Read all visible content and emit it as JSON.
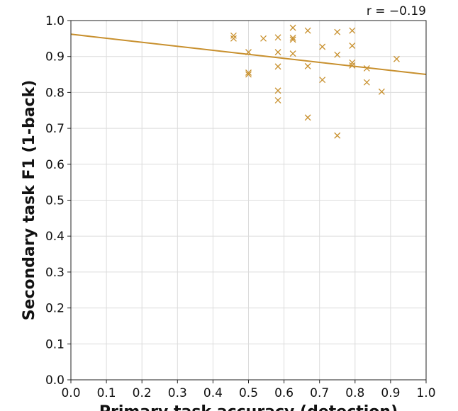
{
  "chart_data": {
    "type": "scatter",
    "title": "",
    "xlabel": "Primary task accuracy (detection)",
    "ylabel": "Secondary task F1 (1-back)",
    "xlim": [
      0.0,
      1.0
    ],
    "ylim": [
      0.0,
      1.0
    ],
    "xticks": [
      "0.0",
      "0.1",
      "0.2",
      "0.3",
      "0.4",
      "0.5",
      "0.6",
      "0.7",
      "0.8",
      "0.9",
      "1.0"
    ],
    "yticks": [
      "0.0",
      "0.1",
      "0.2",
      "0.3",
      "0.4",
      "0.5",
      "0.6",
      "0.7",
      "0.8",
      "0.9",
      "1.0"
    ],
    "grid": true,
    "annotation": "r = −0.19",
    "color": "#c8902e",
    "points": [
      {
        "x": 0.458,
        "y": 0.958
      },
      {
        "x": 0.458,
        "y": 0.95
      },
      {
        "x": 0.5,
        "y": 0.912
      },
      {
        "x": 0.5,
        "y": 0.855
      },
      {
        "x": 0.5,
        "y": 0.85
      },
      {
        "x": 0.542,
        "y": 0.95
      },
      {
        "x": 0.583,
        "y": 0.953
      },
      {
        "x": 0.583,
        "y": 0.912
      },
      {
        "x": 0.583,
        "y": 0.872
      },
      {
        "x": 0.583,
        "y": 0.805
      },
      {
        "x": 0.583,
        "y": 0.778
      },
      {
        "x": 0.625,
        "y": 0.98
      },
      {
        "x": 0.625,
        "y": 0.952
      },
      {
        "x": 0.625,
        "y": 0.947
      },
      {
        "x": 0.625,
        "y": 0.908
      },
      {
        "x": 0.667,
        "y": 0.972
      },
      {
        "x": 0.667,
        "y": 0.873
      },
      {
        "x": 0.667,
        "y": 0.73
      },
      {
        "x": 0.708,
        "y": 0.927
      },
      {
        "x": 0.708,
        "y": 0.835
      },
      {
        "x": 0.75,
        "y": 0.968
      },
      {
        "x": 0.75,
        "y": 0.905
      },
      {
        "x": 0.75,
        "y": 0.68
      },
      {
        "x": 0.792,
        "y": 0.972
      },
      {
        "x": 0.792,
        "y": 0.93
      },
      {
        "x": 0.792,
        "y": 0.883
      },
      {
        "x": 0.792,
        "y": 0.875
      },
      {
        "x": 0.833,
        "y": 0.867
      },
      {
        "x": 0.833,
        "y": 0.828
      },
      {
        "x": 0.875,
        "y": 0.802
      },
      {
        "x": 0.917,
        "y": 0.893
      }
    ],
    "fit_line": {
      "x": [
        0.0,
        1.0
      ],
      "y": [
        0.962,
        0.85
      ]
    }
  }
}
